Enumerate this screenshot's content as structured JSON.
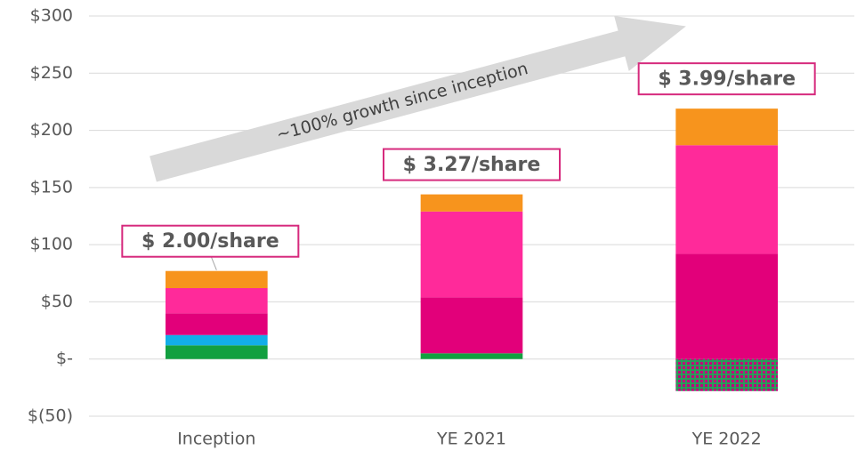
{
  "chart_data": {
    "type": "stacked_bar",
    "categories": [
      "Inception",
      "YE 2021",
      "YE 2022"
    ],
    "series": [
      {
        "color": "#12a040",
        "values": [
          12,
          5,
          null
        ]
      },
      {
        "color": "#12aee8",
        "values": [
          9,
          null,
          null
        ]
      },
      {
        "color": "#e2007a",
        "values": [
          19,
          49,
          92
        ]
      },
      {
        "color": "#ff2a9a",
        "values": [
          22,
          75,
          95
        ]
      },
      {
        "color": "#f7941d",
        "values": [
          15,
          15,
          32
        ]
      },
      {
        "color": "hatch",
        "values": [
          null,
          null,
          -28
        ]
      }
    ],
    "bar_labels": [
      "$ 2.00/share",
      "$ 3.27/share",
      "$ 3.99/share"
    ],
    "arrow_label": "~100% growth since inception",
    "ylim": [
      -50,
      300
    ],
    "yticks": [
      {
        "value": -50,
        "label": "$(50)"
      },
      {
        "value": 0,
        "label": "$-"
      },
      {
        "value": 50,
        "label": "$50"
      },
      {
        "value": 100,
        "label": "$100"
      },
      {
        "value": 150,
        "label": "$150"
      },
      {
        "value": 200,
        "label": "$200"
      },
      {
        "value": 250,
        "label": "$250"
      },
      {
        "value": 300,
        "label": "$300"
      }
    ],
    "grid": true
  }
}
